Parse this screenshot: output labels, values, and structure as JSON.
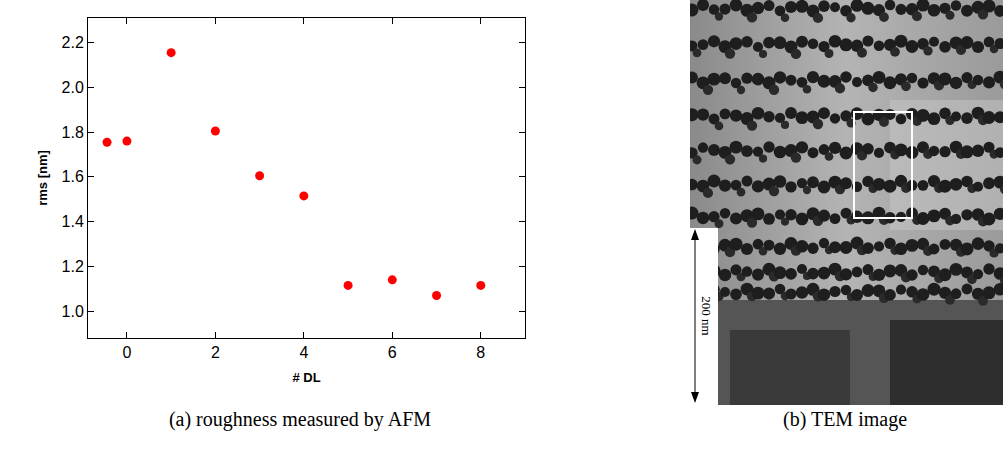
{
  "chart_data": {
    "type": "scatter",
    "caption": "(a) roughness measured by AFM",
    "x_label": "# DL",
    "y_label": "rms [nm]",
    "x": [
      -0.45,
      0,
      1,
      2,
      3,
      4,
      5,
      6,
      7,
      8
    ],
    "values": [
      1.755,
      1.76,
      2.155,
      1.805,
      1.605,
      1.515,
      1.115,
      1.14,
      1.07,
      1.115
    ],
    "color": "#ff0000",
    "marker": "circle",
    "xlim": [
      -0.88,
      9.0
    ],
    "xticks": [
      0,
      2,
      4,
      6,
      8
    ],
    "ylim": [
      0.88,
      2.31
    ],
    "yticks": [
      {
        "value": 1.0,
        "label": "1.0"
      },
      1.2,
      1.4,
      1.6,
      1.8,
      {
        "value": 2.0,
        "label": "2.0"
      },
      2.2
    ],
    "grid": false
  },
  "image_panel": {
    "caption": "(b) TEM image",
    "scale_bar": "200 nm"
  }
}
